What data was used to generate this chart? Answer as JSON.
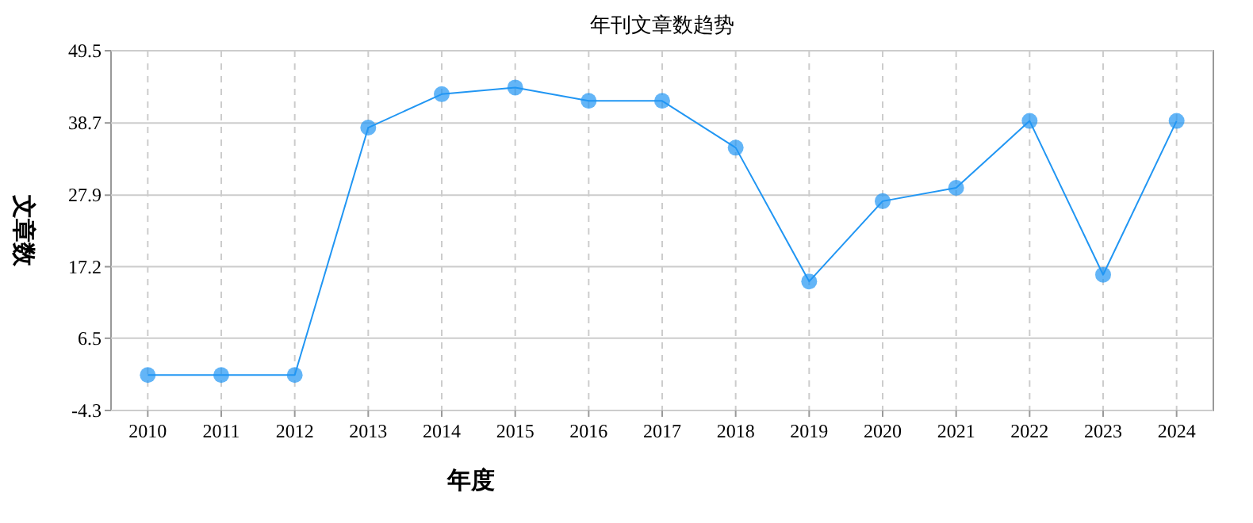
{
  "chart_data": {
    "type": "line",
    "title": "年刊文章数趋势",
    "xlabel": "年度",
    "ylabel": "文章数",
    "categories": [
      "2010",
      "2011",
      "2012",
      "2013",
      "2014",
      "2015",
      "2016",
      "2017",
      "2018",
      "2019",
      "2020",
      "2021",
      "2022",
      "2023",
      "2024"
    ],
    "series": [
      {
        "color": "#2196f3",
        "values": [
          1,
          1,
          1,
          38,
          43,
          44,
          42,
          42,
          35,
          15,
          27,
          29,
          39,
          16,
          39
        ]
      }
    ],
    "ylim": [
      -4.3,
      49.5
    ],
    "yticks": [
      -4.3,
      6.5,
      17.2,
      27.9,
      38.7,
      49.5
    ],
    "grid": true,
    "marker": "circle",
    "line_style": "solid"
  }
}
